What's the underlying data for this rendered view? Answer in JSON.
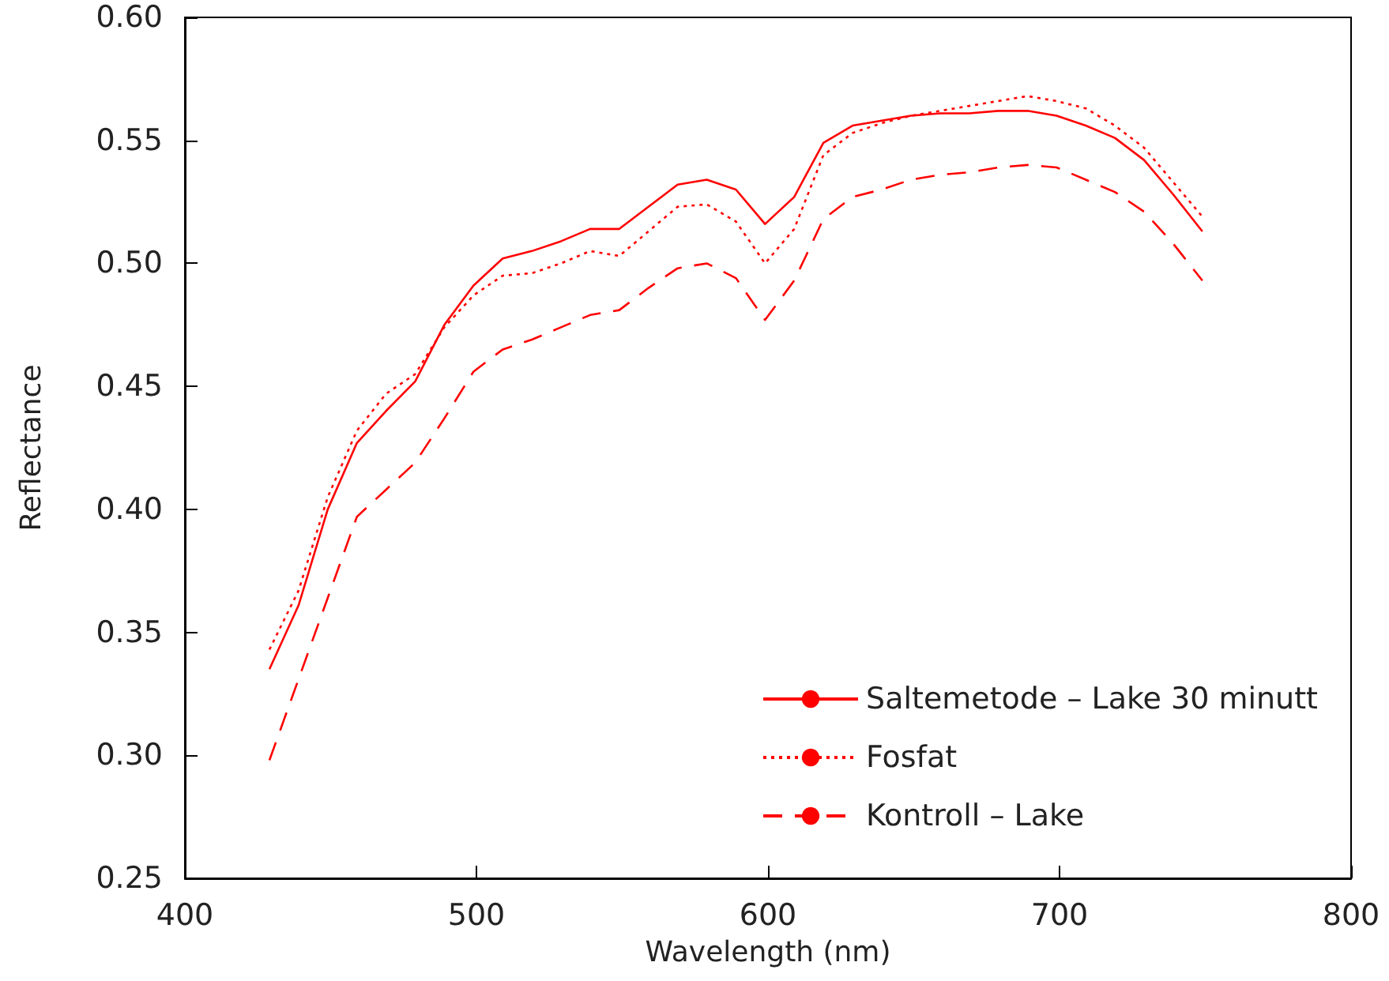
{
  "chart_data": {
    "type": "line",
    "xlabel": "Wavelength (nm)",
    "ylabel": "Reflectance",
    "x": [
      429,
      439,
      449,
      459,
      469,
      479,
      489,
      499,
      509,
      519,
      529,
      539,
      549,
      559,
      569,
      579,
      589,
      599,
      609,
      619,
      629,
      639,
      649,
      659,
      669,
      679,
      689,
      699,
      709,
      719,
      729,
      739,
      749
    ],
    "series": [
      {
        "name": "Saltemetode – Lake 30 minutt",
        "color": "#ff0000",
        "line_style": "solid",
        "values": [
          0.335,
          0.361,
          0.4,
          0.427,
          0.44,
          0.452,
          0.475,
          0.491,
          0.502,
          0.505,
          0.509,
          0.514,
          0.514,
          0.523,
          0.532,
          0.534,
          0.53,
          0.516,
          0.527,
          0.549,
          0.556,
          0.558,
          0.56,
          0.561,
          0.561,
          0.562,
          0.562,
          0.56,
          0.556,
          0.551,
          0.542,
          0.528,
          0.513
        ]
      },
      {
        "name": "Fosfat",
        "color": "#ff0000",
        "line_style": "dotted",
        "values": [
          0.343,
          0.367,
          0.405,
          0.432,
          0.447,
          0.455,
          0.474,
          0.487,
          0.495,
          0.496,
          0.5,
          0.505,
          0.503,
          0.513,
          0.523,
          0.524,
          0.517,
          0.5,
          0.514,
          0.544,
          0.553,
          0.557,
          0.56,
          0.562,
          0.564,
          0.566,
          0.568,
          0.566,
          0.563,
          0.556,
          0.547,
          0.533,
          0.519
        ]
      },
      {
        "name": "Kontroll – Lake",
        "color": "#ff0000",
        "line_style": "dashed",
        "values": [
          0.298,
          0.331,
          0.364,
          0.397,
          0.408,
          0.419,
          0.437,
          0.456,
          0.465,
          0.469,
          0.474,
          0.479,
          0.481,
          0.49,
          0.498,
          0.5,
          0.494,
          0.477,
          0.493,
          0.518,
          0.527,
          0.53,
          0.534,
          0.536,
          0.537,
          0.539,
          0.54,
          0.539,
          0.534,
          0.529,
          0.521,
          0.508,
          0.493
        ]
      }
    ],
    "xlim": [
      400,
      800
    ],
    "xticks": [
      400,
      500,
      600,
      700,
      800
    ],
    "ylim": [
      0.25,
      0.6
    ],
    "yticks": [
      0.25,
      {
        "value": 0.3,
        "label": "0.30"
      },
      0.35,
      {
        "value": 0.4,
        "label": "0.40"
      },
      0.45,
      {
        "value": 0.5,
        "label": "0.50"
      },
      0.55,
      {
        "value": 0.6,
        "label": "0.60"
      }
    ],
    "grid": false,
    "legend": "bottom right",
    "marker": "none"
  }
}
